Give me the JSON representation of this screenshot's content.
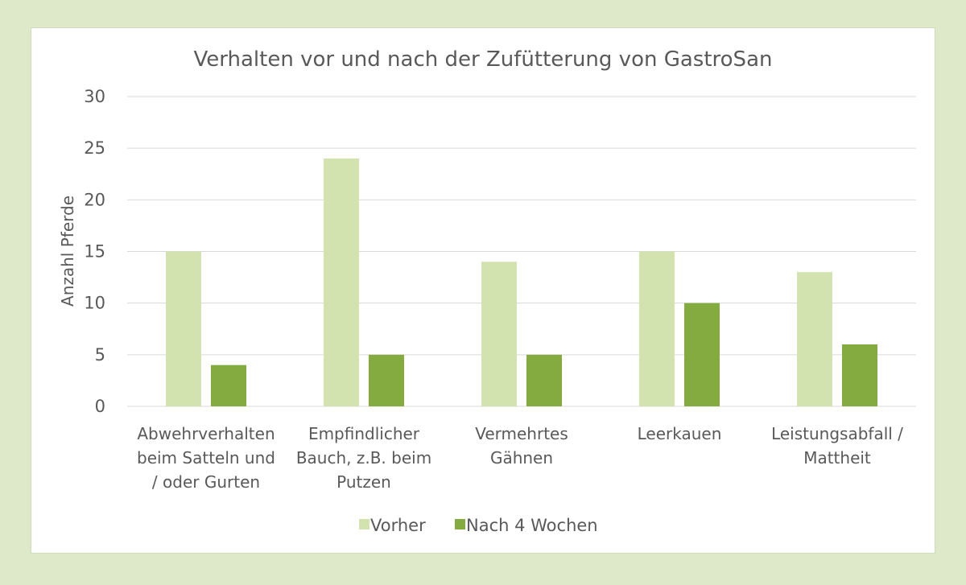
{
  "chart_data": {
    "type": "bar",
    "title": "Verhalten vor und nach der Zufütterung von GastroSan",
    "xlabel": "",
    "ylabel": "Anzahl Pferde",
    "ylim": [
      0,
      30
    ],
    "yticks": [
      0,
      5,
      10,
      15,
      20,
      25,
      30
    ],
    "categories": [
      [
        "Abwehrverhalten",
        "beim Satteln und",
        "/ oder Gurten"
      ],
      [
        "Empfindlicher",
        "Bauch, z.B. beim",
        "Putzen"
      ],
      [
        "Vermehrtes",
        "Gähnen"
      ],
      [
        "Leerkauen"
      ],
      [
        "Leistungsabfall /",
        "Mattheit"
      ]
    ],
    "series": [
      {
        "name": "Vorher",
        "color": "#d3e3b0",
        "values": [
          15,
          24,
          14,
          15,
          13
        ]
      },
      {
        "name": "Nach 4 Wochen",
        "color": "#84ab3f",
        "values": [
          4,
          5,
          5,
          10,
          6
        ]
      }
    ],
    "grid": true,
    "legend_position": "bottom"
  },
  "colors": {
    "background": "#dde9c9",
    "panel": "#ffffff",
    "gridline": "#d9d9d9",
    "text": "#595959"
  }
}
